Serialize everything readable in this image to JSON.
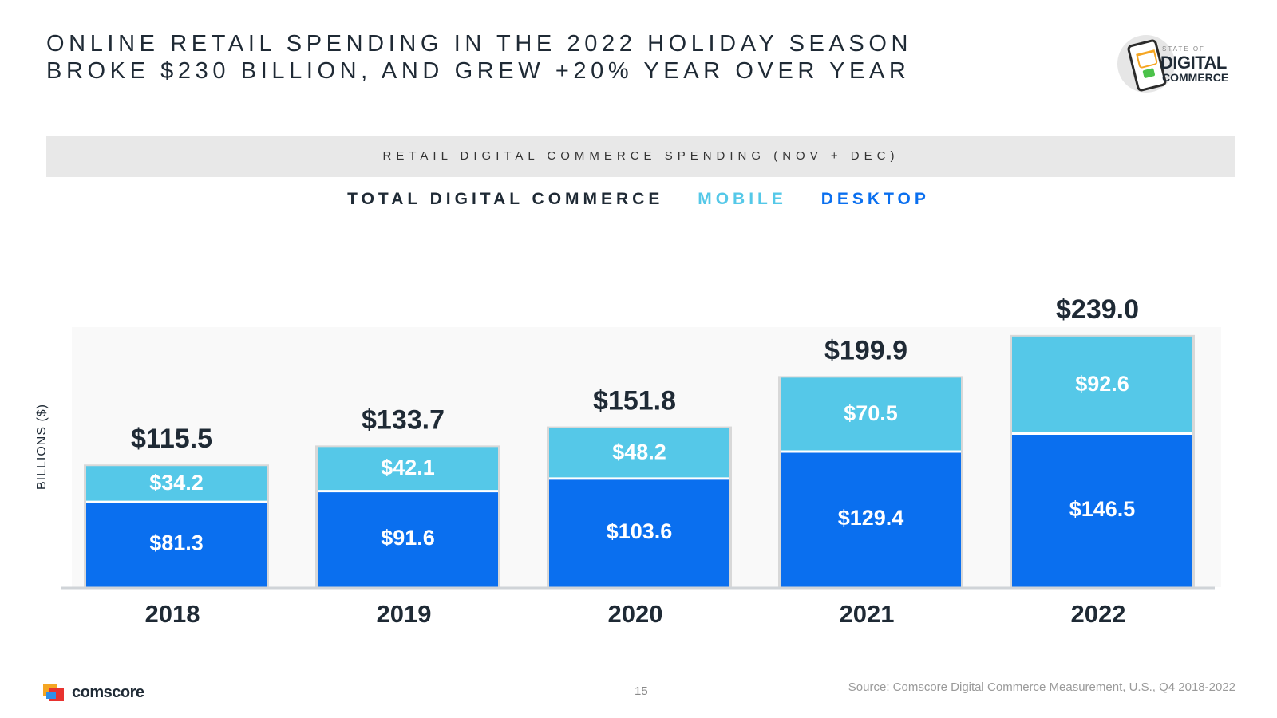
{
  "title": {
    "line1": "ONLINE RETAIL SPENDING IN THE 2022 HOLIDAY SEASON",
    "line2": "BROKE $230 BILLION, AND GREW +20% YEAR OVER YEAR"
  },
  "badge": {
    "state_of": "STATE OF",
    "digital": "DIGITAL",
    "commerce": "COMMERCE"
  },
  "subtitle": "RETAIL DIGITAL COMMERCE SPENDING (NOV + DEC)",
  "legend": {
    "total": "TOTAL DIGITAL COMMERCE",
    "mobile": "MOBILE",
    "desktop": "DESKTOP"
  },
  "colors": {
    "mobile": "#55c8e8",
    "desktop": "#0a6fef",
    "text_dark": "#1f2a35"
  },
  "chart_data": {
    "type": "bar",
    "stacked": true,
    "categories": [
      "2018",
      "2019",
      "2020",
      "2021",
      "2022"
    ],
    "series": [
      {
        "name": "DESKTOP",
        "values": [
          81.3,
          91.6,
          103.6,
          129.4,
          146.5
        ],
        "labels": [
          "$81.3",
          "$91.6",
          "$103.6",
          "$129.4",
          "$146.5"
        ]
      },
      {
        "name": "MOBILE",
        "values": [
          34.2,
          42.1,
          48.2,
          70.5,
          92.6
        ],
        "labels": [
          "$34.2",
          "$42.1",
          "$48.2",
          "$70.5",
          "$92.6"
        ]
      }
    ],
    "totals": [
      115.5,
      133.7,
      151.8,
      199.9,
      239.0
    ],
    "total_labels": [
      "$115.5",
      "$133.7",
      "$151.8",
      "$199.9",
      "$239.0"
    ],
    "ylabel": "BILLIONS ($)",
    "ylim": [
      0,
      239.0
    ],
    "grid": false
  },
  "footer": {
    "page_number": "15",
    "source": "Source: Comscore Digital Commerce Measurement, U.S., Q4 2018-2022",
    "logo_text": "comscore"
  }
}
